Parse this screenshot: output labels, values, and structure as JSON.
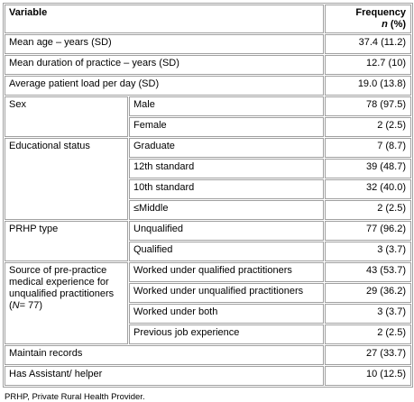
{
  "table": {
    "header": {
      "variable": "Variable",
      "frequency": "Frequency",
      "unit_var": "n",
      "unit": "(%)"
    },
    "rows": [
      {
        "label": "Mean age – years (SD)",
        "value": "37.4 (11.2)"
      },
      {
        "label": "Mean duration of practice – years (SD)",
        "value": "12.7 (10)"
      },
      {
        "label": "Average patient load per day (SD)",
        "value": "19.0 (13.8)"
      },
      {
        "label": "Sex",
        "items": [
          {
            "label": "Male",
            "value": "78 (97.5)"
          },
          {
            "label": "Female",
            "value": "2 (2.5)"
          }
        ]
      },
      {
        "label": "Educational status",
        "items": [
          {
            "label": "Graduate",
            "value": "7 (8.7)"
          },
          {
            "label": "12th standard",
            "value": "39 (48.7)"
          },
          {
            "label": "10th standard",
            "value": "32 (40.0)"
          },
          {
            "label": "≤Middle",
            "value": "2 (2.5)"
          }
        ]
      },
      {
        "label": "PRHP type",
        "items": [
          {
            "label": "Unqualified",
            "value": "77 (96.2)"
          },
          {
            "label": "Qualified",
            "value": "3 (3.7)"
          }
        ]
      },
      {
        "label": "Source of pre-practice medical experience for unqualified practitioners (",
        "label_var": "N",
        "label_end": "= 77)",
        "items": [
          {
            "label": "Worked under qualified practitioners",
            "value": "43 (53.7)"
          },
          {
            "label": "Worked under unqualified practitioners",
            "value": "29 (36.2)"
          },
          {
            "label": "Worked under both",
            "value": "3 (3.7)"
          },
          {
            "label": "Previous job experience",
            "value": "2 (2.5)"
          }
        ]
      },
      {
        "label": "Maintain records",
        "value": "27 (33.7)"
      },
      {
        "label": "Has Assistant/ helper",
        "value": "10 (12.5)"
      }
    ]
  },
  "footnote": "PRHP, Private Rural Health Provider."
}
